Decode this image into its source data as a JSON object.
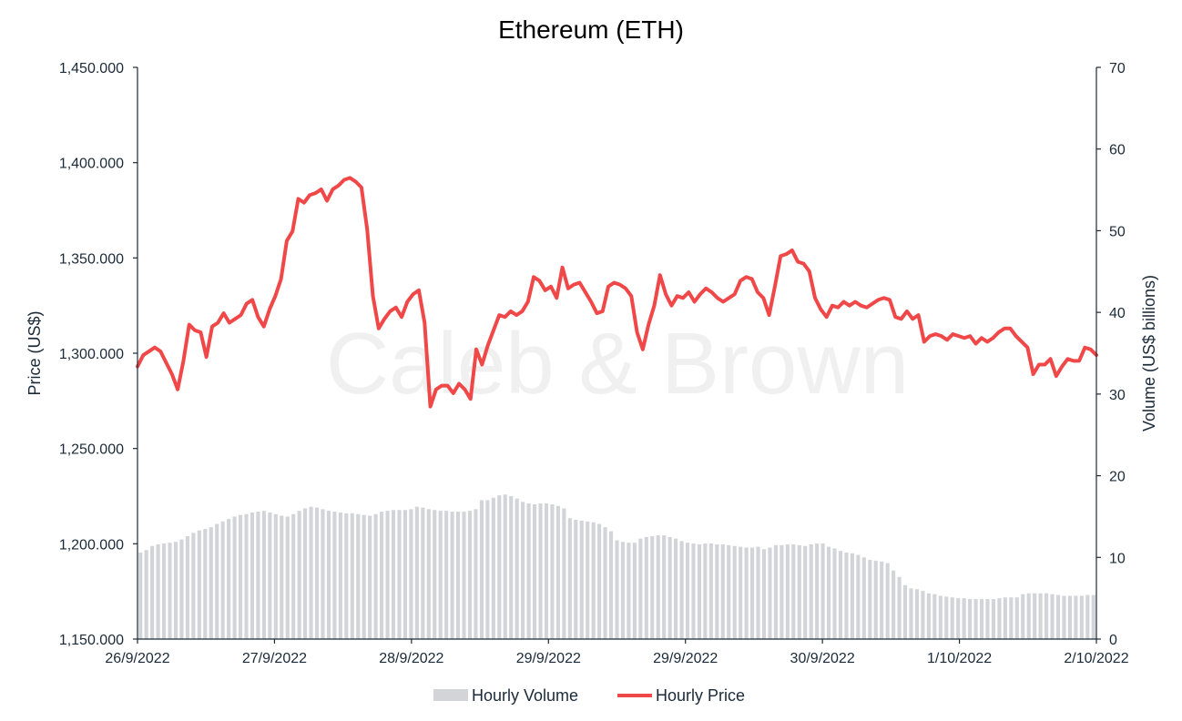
{
  "chart_data": {
    "type": "line",
    "title": "Ethereum (ETH)",
    "watermark": "Caleb & Brown",
    "ylabel_left": "Price (US$)",
    "ylabel_right": "Volume (US$ billions)",
    "ylim_left": [
      1150000,
      1450000
    ],
    "ylim_right": [
      0,
      70
    ],
    "left_ticks": [
      "1,150.000",
      "1,200.000",
      "1,250.000",
      "1,300.000",
      "1,350.000",
      "1,400.000",
      "1,450.000"
    ],
    "right_ticks": [
      "0",
      "10",
      "20",
      "30",
      "40",
      "50",
      "60",
      "70"
    ],
    "x_tick_labels": [
      "26/9/2022",
      "27/9/2022",
      "28/9/2022",
      "29/9/2022",
      "29/9/2022",
      "30/9/2022",
      "1/10/2022",
      "2/10/2022"
    ],
    "grid": false,
    "legend_position": "bottom",
    "colors": {
      "price": "#f04848",
      "volume": "#d2d4d8",
      "axis": "#1b2a38"
    },
    "series": [
      {
        "name": "Hourly Price",
        "kind": "line",
        "axis": "left",
        "values": [
          1293000,
          1299000,
          1301000,
          1303000,
          1301000,
          1295000,
          1289000,
          1281000,
          1296000,
          1315000,
          1312000,
          1311000,
          1298000,
          1314000,
          1316000,
          1321000,
          1316000,
          1318000,
          1320000,
          1326000,
          1328000,
          1319000,
          1314000,
          1323000,
          1330000,
          1339000,
          1359000,
          1364000,
          1381000,
          1379000,
          1383000,
          1384000,
          1386000,
          1380000,
          1386000,
          1388000,
          1391000,
          1392000,
          1390000,
          1387000,
          1365000,
          1330000,
          1313000,
          1318000,
          1322000,
          1324000,
          1319000,
          1327000,
          1331000,
          1333000,
          1316000,
          1272000,
          1281000,
          1283000,
          1283000,
          1279000,
          1284000,
          1281000,
          1276000,
          1302000,
          1294000,
          1304000,
          1312000,
          1320000,
          1319000,
          1322000,
          1320000,
          1322000,
          1327000,
          1340000,
          1338000,
          1333000,
          1335000,
          1329000,
          1345000,
          1334000,
          1336000,
          1337000,
          1332000,
          1327000,
          1321000,
          1322000,
          1335000,
          1337000,
          1336000,
          1334000,
          1330000,
          1311000,
          1302000,
          1315000,
          1325000,
          1341000,
          1331000,
          1325000,
          1330000,
          1329000,
          1332000,
          1327000,
          1331000,
          1334000,
          1332000,
          1329000,
          1327000,
          1329000,
          1331000,
          1338000,
          1340000,
          1339000,
          1332000,
          1329000,
          1320000,
          1335000,
          1351000,
          1352000,
          1354000,
          1348000,
          1347000,
          1343000,
          1329000,
          1323000,
          1319000,
          1325000,
          1324000,
          1327000,
          1325000,
          1327000,
          1325000,
          1324000,
          1326000,
          1328000,
          1329000,
          1328000,
          1319000,
          1318000,
          1322000,
          1318000,
          1320000,
          1306000,
          1309000,
          1310000,
          1309000,
          1307000,
          1310000,
          1309000,
          1308000,
          1309000,
          1305000,
          1308000,
          1306000,
          1308000,
          1311000,
          1313000,
          1313000,
          1309000,
          1306000,
          1303000,
          1289000,
          1294000,
          1294000,
          1297000,
          1288000,
          1293000,
          1297000,
          1296000,
          1296000,
          1303000,
          1302000,
          1299000
        ]
      },
      {
        "name": "Hourly Volume",
        "kind": "bar",
        "axis": "right",
        "values": [
          10.6,
          10.9,
          11.4,
          11.6,
          11.7,
          11.8,
          11.9,
          12.2,
          12.6,
          13.0,
          13.3,
          13.5,
          13.7,
          14.1,
          14.4,
          14.7,
          15.0,
          15.2,
          15.3,
          15.5,
          15.6,
          15.7,
          15.5,
          15.3,
          15.1,
          15.0,
          15.3,
          15.7,
          16.0,
          16.2,
          16.1,
          15.9,
          15.7,
          15.6,
          15.5,
          15.4,
          15.4,
          15.3,
          15.2,
          15.1,
          15.3,
          15.6,
          15.7,
          15.8,
          15.8,
          15.8,
          15.9,
          16.2,
          16.1,
          15.9,
          15.8,
          15.7,
          15.7,
          15.6,
          15.6,
          15.6,
          15.7,
          15.9,
          17.0,
          17.0,
          17.3,
          17.6,
          17.7,
          17.5,
          17.2,
          16.8,
          16.6,
          16.5,
          16.6,
          16.6,
          16.5,
          16.3,
          16.0,
          14.8,
          14.6,
          14.5,
          14.4,
          14.3,
          14.1,
          13.7,
          13.2,
          12.1,
          11.9,
          11.8,
          11.8,
          12.3,
          12.5,
          12.6,
          12.7,
          12.7,
          12.5,
          12.3,
          12.0,
          11.8,
          11.7,
          11.6,
          11.7,
          11.7,
          11.6,
          11.6,
          11.5,
          11.4,
          11.3,
          11.2,
          11.2,
          11.3,
          11.0,
          11.2,
          11.5,
          11.5,
          11.6,
          11.6,
          11.5,
          11.4,
          11.6,
          11.7,
          11.7,
          11.3,
          11.1,
          10.8,
          10.6,
          10.5,
          10.3,
          10.0,
          9.7,
          9.6,
          9.5,
          9.3,
          8.4,
          7.6,
          6.6,
          6.2,
          6.1,
          5.9,
          5.6,
          5.5,
          5.3,
          5.2,
          5.1,
          5.0,
          5.0,
          4.9,
          4.9,
          4.9,
          4.9,
          4.9,
          5.0,
          5.1,
          5.1,
          5.1,
          5.5,
          5.6,
          5.6,
          5.6,
          5.6,
          5.5,
          5.4,
          5.3,
          5.3,
          5.3,
          5.3,
          5.4,
          5.4
        ]
      }
    ]
  }
}
